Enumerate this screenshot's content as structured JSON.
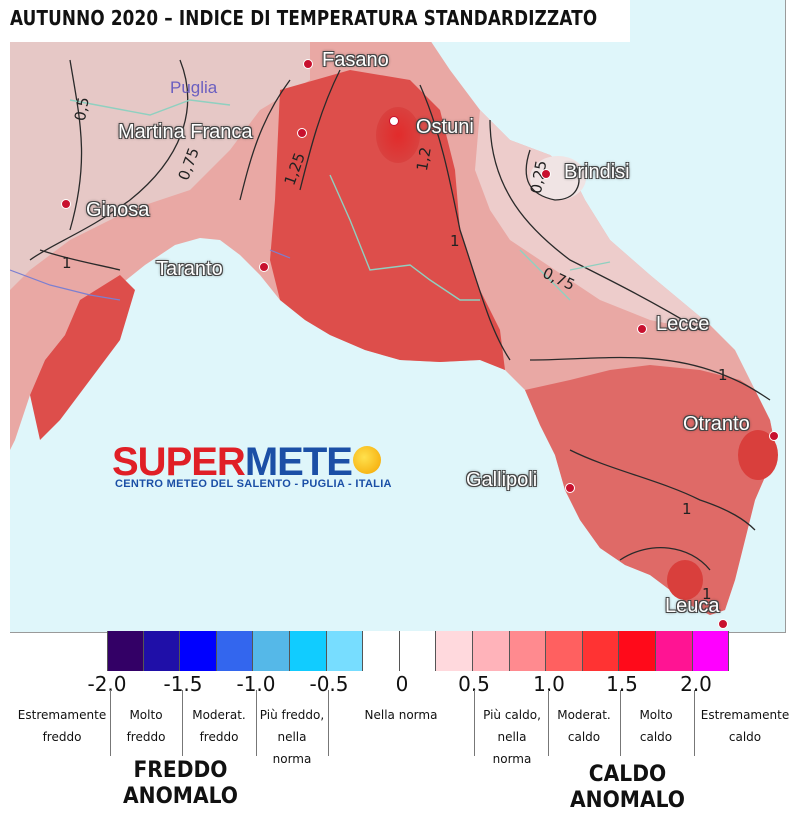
{
  "title": "AUTUNNO 2020 – INDICE DI TEMPERATURA STANDARDIZZATO",
  "region_label": "Puglia",
  "cities": [
    {
      "name": "Fasano",
      "id": "fasano"
    },
    {
      "name": "Ostuni",
      "id": "ostuni"
    },
    {
      "name": "Martina Franca",
      "id": "martina-franca"
    },
    {
      "name": "Brindisi",
      "id": "brindisi"
    },
    {
      "name": "Ginosa",
      "id": "ginosa"
    },
    {
      "name": "Taranto",
      "id": "taranto"
    },
    {
      "name": "Lecce",
      "id": "lecce"
    },
    {
      "name": "Otranto",
      "id": "otranto"
    },
    {
      "name": "Gallipoli",
      "id": "gallipoli"
    },
    {
      "name": "Leuca",
      "id": "leuca"
    }
  ],
  "contour_labels": [
    "0,5",
    "0,75",
    "1,25",
    "1,2",
    "1",
    "0,25",
    "1",
    "0,75",
    "1",
    "1",
    "1"
  ],
  "logo": {
    "super": "SUPER",
    "meteo": "METE",
    "subtitle": "CENTRO METEO DEL SALENTO - PUGLIA - ITALIA"
  },
  "legend": {
    "colors": [
      "#330066",
      "#1f0fa8",
      "#0000ff",
      "#3366ee",
      "#55b8e8",
      "#11ccff",
      "#77ddff",
      "#ffffff",
      "#ffffff",
      "#ffd9dd",
      "#ffb3ba",
      "#ff8a8f",
      "#ff6060",
      "#ff3333",
      "#ff0a1a",
      "#ff1493",
      "#ff00ff"
    ],
    "ticks": [
      "-2.0",
      "-1.5",
      "-1.0",
      "-0.5",
      "0",
      "0.5",
      "1.0",
      "1.5",
      "2.0"
    ],
    "categories": [
      "Estremamente freddo",
      "Molto freddo",
      "Moderat. freddo",
      "Più freddo, nella norma",
      "Nella norma",
      "Più caldo, nella norma",
      "Moderat. caldo",
      "Molto caldo",
      "Estremamente caldo"
    ],
    "cold_label": "FREDDO ANOMALO",
    "warm_label": "CALDO ANOMALO"
  }
}
